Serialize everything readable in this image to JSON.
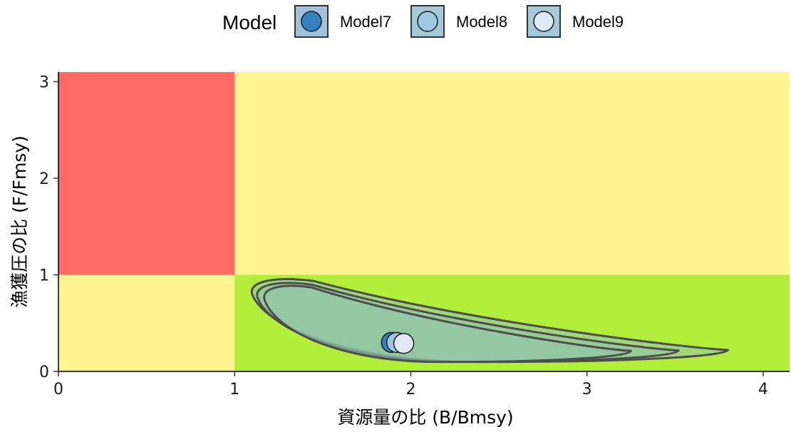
{
  "chart_data": {
    "type": "scatter",
    "xlabel": "資源量の比 (B/Bmsy)",
    "ylabel": "漁獲圧の比 (F/Fmsy)",
    "xlim": [
      0,
      4.15
    ],
    "ylim": [
      0,
      3.1
    ],
    "x_ticks": [
      0,
      1,
      2,
      3,
      4
    ],
    "y_ticks": [
      0,
      1,
      2,
      3
    ],
    "zones": [
      {
        "x": [
          0,
          1
        ],
        "y": [
          1,
          3.1
        ],
        "color": "#FF6A67"
      },
      {
        "x": [
          1,
          4.15
        ],
        "y": [
          1,
          3.1
        ],
        "color": "#FFF48F"
      },
      {
        "x": [
          0,
          1
        ],
        "y": [
          0,
          1
        ],
        "color": "#FFF48F"
      },
      {
        "x": [
          1,
          4.15
        ],
        "y": [
          0,
          1
        ],
        "color": "#B3EE3A"
      }
    ],
    "legend": {
      "title": "Model",
      "position": "top"
    },
    "series": [
      {
        "name": "Model7",
        "color": "#3182BD",
        "point": {
          "x": 1.89,
          "y": 0.3
        },
        "region": {
          "x_min": 1.1,
          "x_max": 3.8,
          "y_min": 0.1,
          "y_max": 0.97
        }
      },
      {
        "name": "Model8",
        "color": "#9ECAE1",
        "point": {
          "x": 1.92,
          "y": 0.3
        },
        "region": {
          "x_min": 1.13,
          "x_max": 3.52,
          "y_min": 0.1,
          "y_max": 0.93
        }
      },
      {
        "name": "Model9",
        "color": "#DEEBF7",
        "point": {
          "x": 1.96,
          "y": 0.29
        },
        "region": {
          "x_min": 1.17,
          "x_max": 3.25,
          "y_min": 0.1,
          "y_max": 0.9
        }
      }
    ]
  }
}
